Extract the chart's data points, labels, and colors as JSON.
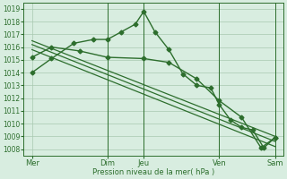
{
  "background_color": "#d8ede0",
  "grid_color": "#a8c8b0",
  "line_color": "#2d6e2d",
  "ylabel": "Pression niveau de la mer( hPa )",
  "ylim": [
    1007.5,
    1019.5
  ],
  "yticks": [
    1008,
    1009,
    1010,
    1011,
    1012,
    1013,
    1014,
    1015,
    1016,
    1017,
    1018,
    1019
  ],
  "xlim": [
    0,
    9.3
  ],
  "xtick_labels": [
    "Mer",
    "Dim",
    "Jeu",
    "Ven",
    "Sam"
  ],
  "xtick_positions": [
    0.3,
    3.0,
    4.3,
    7.0,
    9.0
  ],
  "vline_positions": [
    3.0,
    4.3,
    7.0,
    9.0
  ],
  "series": [
    {
      "x": [
        0.3,
        1.0,
        1.8,
        2.5,
        3.0,
        3.5,
        4.0,
        4.3,
        4.7,
        5.2,
        5.7,
        6.2,
        6.7,
        7.0,
        7.4,
        7.8,
        8.2,
        8.6,
        9.0
      ],
      "y": [
        1014.0,
        1015.1,
        1016.3,
        1016.6,
        1016.6,
        1017.2,
        1017.8,
        1018.8,
        1017.2,
        1015.8,
        1013.9,
        1013.0,
        1012.8,
        1011.5,
        1010.3,
        1009.7,
        1009.5,
        1008.1,
        1008.9
      ],
      "marker": "D",
      "markersize": 2.5,
      "linewidth": 1.0
    },
    {
      "x": [
        0.3,
        9.0
      ],
      "y": [
        1016.5,
        1009.0
      ],
      "marker": null,
      "markersize": 0,
      "linewidth": 0.9
    },
    {
      "x": [
        0.3,
        9.0
      ],
      "y": [
        1016.2,
        1008.6
      ],
      "marker": null,
      "markersize": 0,
      "linewidth": 0.9
    },
    {
      "x": [
        0.3,
        9.0
      ],
      "y": [
        1015.8,
        1008.2
      ],
      "marker": null,
      "markersize": 0,
      "linewidth": 0.9
    },
    {
      "x": [
        0.3,
        1.0,
        2.0,
        3.0,
        4.3,
        5.2,
        6.2,
        7.0,
        7.8,
        8.5,
        9.0
      ],
      "y": [
        1015.2,
        1016.0,
        1015.7,
        1015.2,
        1015.1,
        1014.8,
        1013.5,
        1011.8,
        1010.5,
        1008.1,
        1008.9
      ],
      "marker": "D",
      "markersize": 2.5,
      "linewidth": 1.0
    }
  ]
}
